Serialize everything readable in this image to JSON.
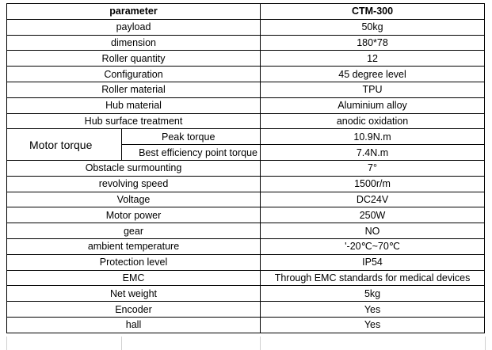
{
  "header": {
    "param": "parameter",
    "model": "CTM-300"
  },
  "rows_top": [
    {
      "param": "payload",
      "value": "50kg"
    },
    {
      "param": "dimension",
      "value": "180*78"
    },
    {
      "param": "Roller quantity",
      "value": "12"
    },
    {
      "param": "Configuration",
      "value": "45 degree level"
    },
    {
      "param": "Roller material",
      "value": "TPU"
    },
    {
      "param": "Hub material",
      "value": "Aluminium alloy"
    },
    {
      "param": "Hub surface treatment",
      "value": "anodic oxidation"
    }
  ],
  "motor_torque": {
    "label": "Motor torque",
    "peak_label": "Peak torque",
    "peak_value": "10.9N.m",
    "best_label": "Best efficiency point torque",
    "best_value": "7.4N.m"
  },
  "rows_bottom": [
    {
      "param": "Obstacle surmounting",
      "value": "7°"
    },
    {
      "param": "revolving speed",
      "value": "1500r/m"
    },
    {
      "param": "Voltage",
      "value": "DC24V"
    },
    {
      "param": "Motor power",
      "value": "250W"
    },
    {
      "param": "gear",
      "value": "NO"
    },
    {
      "param": "ambient temperature",
      "value": "'-20℃~70℃"
    },
    {
      "param": "Protection level",
      "value": "IP54"
    },
    {
      "param": "EMC",
      "value": "Through EMC standards for medical devices"
    },
    {
      "param": "Net weight",
      "value": "5kg"
    },
    {
      "param": "Encoder",
      "value": "Yes"
    },
    {
      "param": "hall",
      "value": "Yes"
    }
  ]
}
